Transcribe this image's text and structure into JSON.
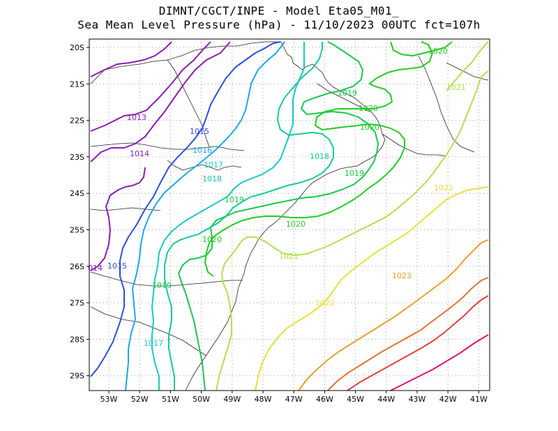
{
  "title_line1": "DIMNT/CGCT/INPE -  Model Eta05_M01_",
  "title_line2": "Sea Mean Level Pressure (hPa) - 11/10/2023 00UTC fct=107h",
  "lat_labels": [
    "20S",
    "21S",
    "22S",
    "23S",
    "24S",
    "25S",
    "26S",
    "27S",
    "28S",
    "29S"
  ],
  "lon_labels": [
    "53W",
    "52W",
    "51W",
    "50W",
    "49W",
    "48W",
    "47W",
    "46W",
    "45W",
    "44W",
    "43W",
    "42W",
    "41W"
  ],
  "contour_labels": {
    "c1013": "1013",
    "c1014a": "1014",
    "c1014b": "014",
    "c1015a": "1015",
    "c1015b": "1015",
    "c1016": "1016",
    "c1017a": "1017",
    "c1017b": "1017",
    "c1018a": "1018",
    "c1018b": "1018",
    "c1019a": "1019",
    "c1019b": "1019",
    "c1019c": "1019",
    "c1019d": "1019",
    "c1020a": "1020",
    "c1020b": "1020",
    "c1020c": "1020",
    "c1020d": "1020",
    "c1020e": "1020",
    "c1021a": "1021",
    "c1021b": "1021",
    "c1022a": "1022",
    "c1022b": "1022",
    "c1023": "1023"
  },
  "colors": {
    "1013": "#8a1cb4",
    "1014": "#8a1cb4",
    "1015": "#2a4fe0",
    "1016": "#1aa8e6",
    "1017": "#18c8c8",
    "1018": "#18c8a0",
    "1019": "#18c850",
    "1020": "#22cc22",
    "1021": "#b4e050",
    "1022": "#e6e040",
    "1023": "#e6a030",
    "1024": "#e67030",
    "1025": "#e04040",
    "1026": "#e01070"
  }
}
